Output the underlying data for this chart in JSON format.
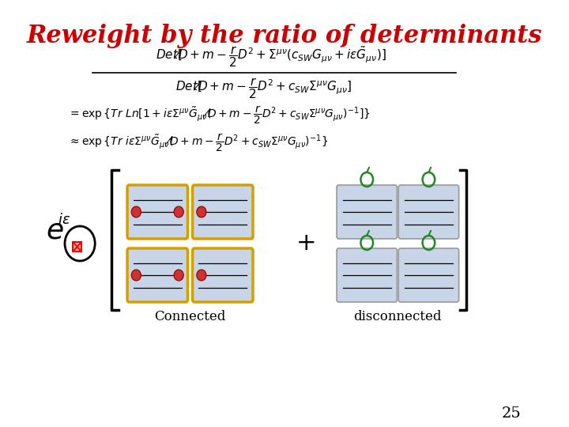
{
  "title": "Reweight by the ratio of determinants",
  "title_color": "#cc0000",
  "title_fontsize": 22,
  "background_color": "#ffffff",
  "slide_number": "25",
  "label_connected": "Connected",
  "label_disconnected": "disconnected"
}
